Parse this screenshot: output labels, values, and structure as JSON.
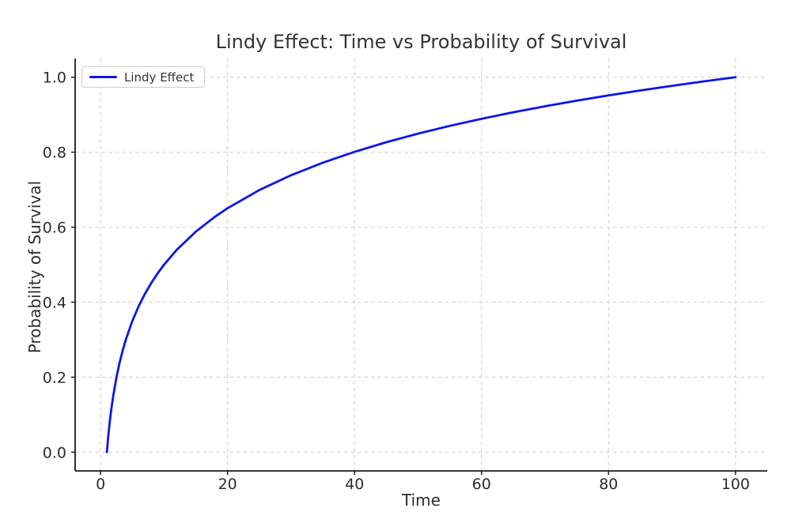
{
  "chart_data": {
    "type": "line",
    "title": "Lindy Effect: Time vs Probability of Survival",
    "xlabel": "Time",
    "ylabel": "Probability of Survival",
    "xlim": [
      -4,
      105
    ],
    "ylim": [
      -0.05,
      1.05
    ],
    "xticks": [
      0,
      20,
      40,
      60,
      80,
      100
    ],
    "xtick_labels": [
      "0",
      "20",
      "40",
      "60",
      "80",
      "100"
    ],
    "yticks": [
      0.0,
      0.2,
      0.4,
      0.6,
      0.8,
      1.0
    ],
    "ytick_labels": [
      "0.0",
      "0.2",
      "0.4",
      "0.6",
      "0.8",
      "1.0"
    ],
    "grid": true,
    "grid_style": "dashed",
    "legend": {
      "visible": true,
      "position": "upper-left",
      "entries": [
        {
          "label": "Lindy Effect",
          "color": "#0b16e8"
        }
      ]
    },
    "series": [
      {
        "name": "Lindy Effect",
        "color": "#0b16e8",
        "line_width": 2.8,
        "x": [
          1,
          1.1,
          1.2,
          1.3,
          1.5,
          1.7,
          2,
          2.5,
          3,
          3.5,
          4,
          5,
          6,
          7,
          8,
          9,
          10,
          12,
          15,
          18,
          20,
          25,
          30,
          35,
          40,
          45,
          50,
          55,
          60,
          65,
          70,
          75,
          80,
          85,
          90,
          95,
          100
        ],
        "y": [
          0,
          0.0207,
          0.0396,
          0.057,
          0.088,
          0.1152,
          0.1505,
          0.199,
          0.2386,
          0.272,
          0.301,
          0.3495,
          0.3891,
          0.4226,
          0.4515,
          0.4771,
          0.5,
          0.5396,
          0.5881,
          0.6276,
          0.6505,
          0.699,
          0.7386,
          0.772,
          0.801,
          0.8266,
          0.8495,
          0.8702,
          0.8891,
          0.9065,
          0.9225,
          0.9375,
          0.9515,
          0.9647,
          0.9771,
          0.9889,
          1.0
        ]
      }
    ],
    "colors": {
      "background": "#ffffff",
      "grid": "#d6d6d6",
      "spine": "#1a1a1a",
      "tick_text": "#2d2d2d"
    }
  }
}
